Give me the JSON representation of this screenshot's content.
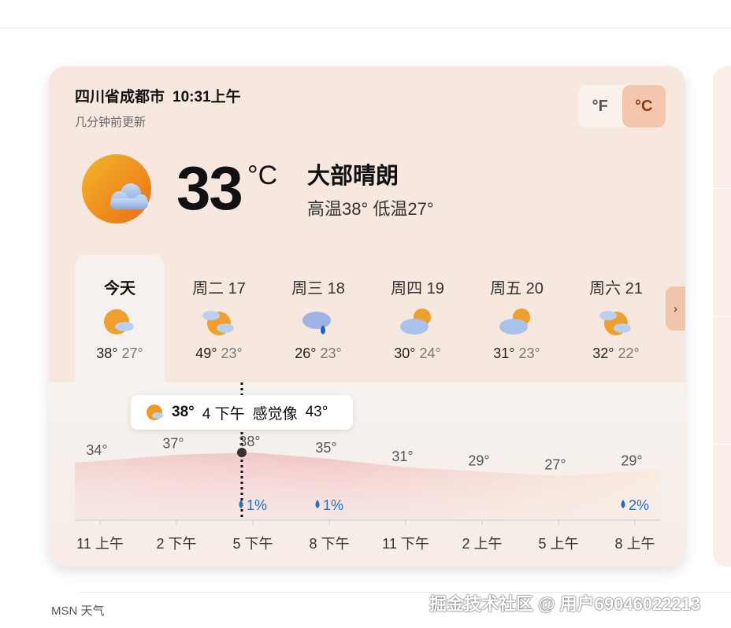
{
  "header": {
    "location": "四川省成都市",
    "time": "10:31上午",
    "updated": "几分钟前更新"
  },
  "units": {
    "f": "°F",
    "c": "°C",
    "selected": "°C"
  },
  "current": {
    "temp": "33",
    "unit": "°C",
    "condition": "大部晴朗",
    "hilo": "高温38° 低温27°",
    "icon": "partly-sunny-icon"
  },
  "days": [
    {
      "name": "今天",
      "hi": "38°",
      "lo": "27°",
      "icon": "sun-cloud"
    },
    {
      "name": "周二 17",
      "hi": "49°",
      "lo": "23°",
      "icon": "cloud-sun"
    },
    {
      "name": "周三 18",
      "hi": "26°",
      "lo": "23°",
      "icon": "rain"
    },
    {
      "name": "周四 19",
      "hi": "30°",
      "lo": "24°",
      "icon": "cloud-sun-behind"
    },
    {
      "name": "周五 20",
      "hi": "31°",
      "lo": "23°",
      "icon": "cloud-sun-behind"
    },
    {
      "name": "周六 21",
      "hi": "32°",
      "lo": "22°",
      "icon": "cloud-sun"
    }
  ],
  "tooltip": {
    "temp": "38°",
    "time": "4 下午",
    "feels_label": "感觉像",
    "feels": "43°"
  },
  "chart_data": {
    "type": "area",
    "x": [
      "11 上午",
      "2 下午",
      "5 下午",
      "8 下午",
      "11 下午",
      "2 上午",
      "5 上午",
      "8 上午"
    ],
    "temps": [
      34,
      37,
      38,
      35,
      31,
      29,
      27,
      29
    ],
    "temp_labels": [
      "34°",
      "37°",
      "38°",
      "35°",
      "31°",
      "29°",
      "27°",
      "29°"
    ],
    "precip": [
      "",
      "",
      "1%",
      "1%",
      "",
      "",
      "",
      "2%"
    ]
  },
  "footer": {
    "source": "MSN 天气",
    "watermark": "掘金技术社区 @ 用户69046022213"
  },
  "colors": {
    "selected_unit": "#f4c6ac",
    "precip": "#1a73c8",
    "card": "#f6e7df"
  }
}
